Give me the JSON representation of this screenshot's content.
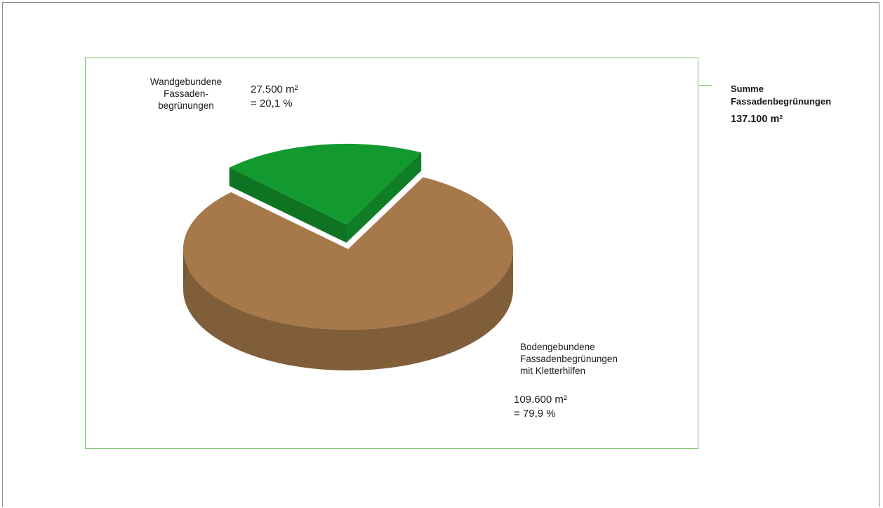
{
  "chart_data": {
    "type": "pie",
    "slices": [
      {
        "name_lines": [
          "Wandgebundene",
          "Fassaden-",
          "begrünungen"
        ],
        "value": 27500,
        "value_label": "27.500 m²",
        "percent": 20.1,
        "percent_label": "=  20,1 %",
        "color": "#139a2e"
      },
      {
        "name_lines": [
          "Bodengebundene",
          "Fassadenbegrünungen",
          "mit Kletterhilfen"
        ],
        "value": 109600,
        "value_label": "109.600 m²",
        "percent": 79.9,
        "percent_label": "= 79,9 %",
        "color": "#a6784a"
      }
    ],
    "exploded_slice": "Wandgebundene",
    "style": "3d"
  },
  "summary": {
    "title_lines": [
      "Summe",
      "Fassadenbegrünungen"
    ],
    "total_label": "137.100 m²"
  },
  "colors": {
    "frame": "#6cbf5a",
    "page_border": "#8c8c8c"
  }
}
